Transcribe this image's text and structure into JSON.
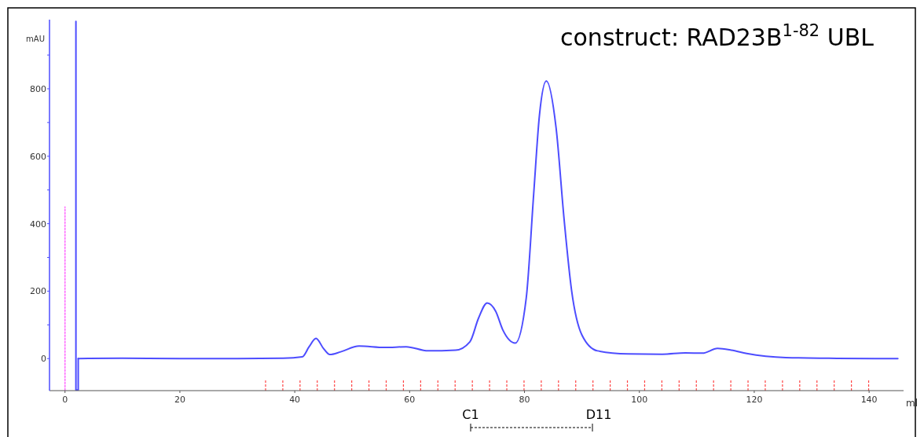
{
  "chart_data": {
    "type": "line",
    "title": "construct: RAD23B$^{1-82}$ UBL",
    "xlabel": "ml",
    "ylabel": "mAU",
    "xlim": [
      -2.7,
      146
    ],
    "ylim": [
      -95,
      1005
    ],
    "xticks": [
      0,
      20,
      40,
      60,
      80,
      100,
      120,
      140
    ],
    "yticks": [
      0,
      {
        "value": 100,
        "label": null
      },
      200,
      {
        "value": 300,
        "label": null
      },
      400,
      {
        "value": 500,
        "label": null
      },
      600,
      {
        "value": 700,
        "label": null
      },
      800,
      {
        "value": 900,
        "label": null
      }
    ],
    "grid": false,
    "series": [
      {
        "color": "#4d4dff",
        "line_style": "solid",
        "x": [
          1.9,
          1.9,
          2.3,
          2.3
        ],
        "values": [
          1000,
          -93,
          -93,
          0
        ]
      },
      {
        "color": "#4d4dff",
        "line_style": "solid",
        "x": [
          2.3,
          10,
          20,
          30,
          38,
          41.3,
          42.5,
          43.7,
          45,
          46.1,
          48,
          51.2,
          55.7,
          59.4,
          63.2,
          68,
          70.5,
          72,
          73.5,
          75,
          76.2,
          78.4,
          80.3,
          81.6,
          82.6,
          83.8,
          85.5,
          86.9,
          88.2,
          90,
          92.7,
          98,
          104,
          108,
          111,
          113.6,
          116,
          118.7,
          125.5,
          133,
          141,
          145
        ],
        "values": [
          0,
          1,
          0,
          0,
          1,
          5,
          35,
          60,
          30,
          12,
          20,
          37,
          33,
          35,
          23,
          25,
          50,
          120,
          165,
          140,
          86,
          46,
          179,
          488,
          721,
          823,
          684,
          412,
          202,
          70,
          23,
          14,
          13,
          17,
          16,
          30,
          25,
          15,
          3,
          1,
          0,
          0
        ]
      },
      {
        "color": "#ff66ff",
        "line_style": "dotted",
        "x": [
          0,
          0
        ],
        "values": [
          -93,
          450
        ]
      }
    ],
    "annotations": [
      "C1",
      "D11"
    ]
  }
}
